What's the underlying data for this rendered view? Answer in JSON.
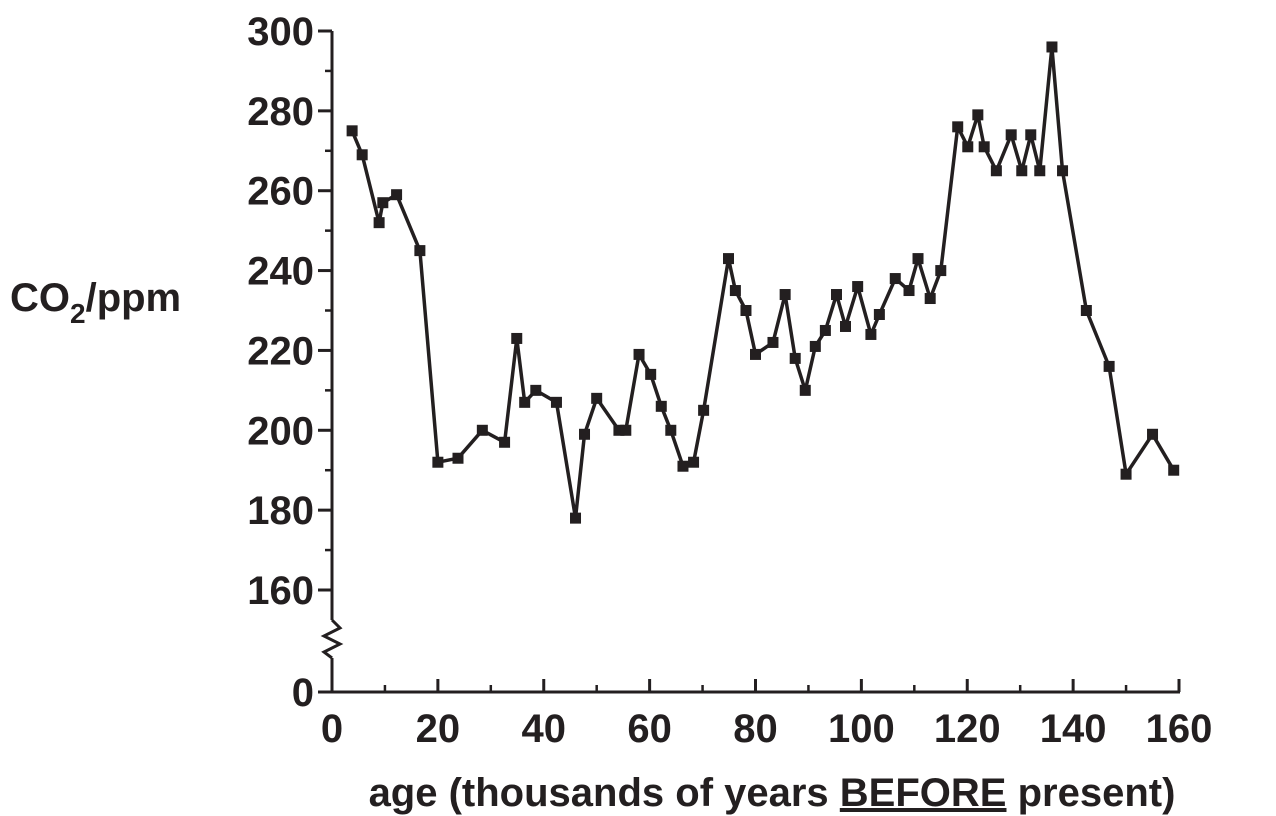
{
  "chart_data": {
    "type": "line",
    "title": "",
    "ylabel": {
      "main": "CO",
      "subscript": "2",
      "rest": "/ppm"
    },
    "xlabel": {
      "before": "age (thousands of years ",
      "underlined": "BEFORE",
      "after": " present)"
    },
    "xlim": [
      0,
      160
    ],
    "ylim": [
      160,
      300
    ],
    "y_axis_break": {
      "below": 160,
      "baseline_tick": "0"
    },
    "x_ticks": [
      "0",
      "20",
      "40",
      "60",
      "80",
      "100",
      "120",
      "140",
      "160"
    ],
    "y_ticks": [
      "300",
      "280",
      "260",
      "240",
      "220",
      "200",
      "180",
      "160"
    ],
    "grid": false,
    "legend": "none",
    "marker": "square",
    "color": "#231f20",
    "series": [
      {
        "x": [
          3.8,
          5.7,
          8.9,
          9.6,
          12.2,
          16.6,
          20.0,
          23.8,
          28.4,
          32.6,
          34.9,
          36.4,
          38.5,
          42.4,
          46.0,
          47.7,
          50.0,
          54.2,
          55.5,
          58.0,
          60.2,
          62.2,
          64.0,
          66.3,
          68.3,
          70.2,
          74.9,
          76.2,
          78.2,
          80.0,
          83.3,
          85.6,
          87.5,
          89.4,
          91.3,
          93.2,
          95.3,
          97.0,
          99.3,
          101.8,
          103.4,
          106.4,
          109.0,
          110.7,
          113.0,
          115.0,
          118.2,
          120.1,
          122.0,
          123.2,
          125.5,
          128.3,
          130.3,
          132.0,
          133.7,
          136.0,
          138.0,
          142.5,
          146.8,
          150.0,
          155.0,
          159.0
        ],
        "y": [
          275,
          269,
          252,
          257,
          259,
          245,
          192,
          193,
          200,
          197,
          223,
          207,
          210,
          207,
          178,
          199,
          208,
          200,
          200,
          219,
          214,
          206,
          200,
          191,
          192,
          205,
          243,
          235,
          230,
          219,
          222,
          234,
          218,
          210,
          221,
          225,
          234,
          226,
          236,
          224,
          229,
          238,
          235,
          243,
          233,
          240,
          276,
          271,
          279,
          271,
          265,
          274,
          265,
          274,
          265,
          296,
          265,
          230,
          216,
          189,
          199,
          190
        ]
      }
    ]
  }
}
